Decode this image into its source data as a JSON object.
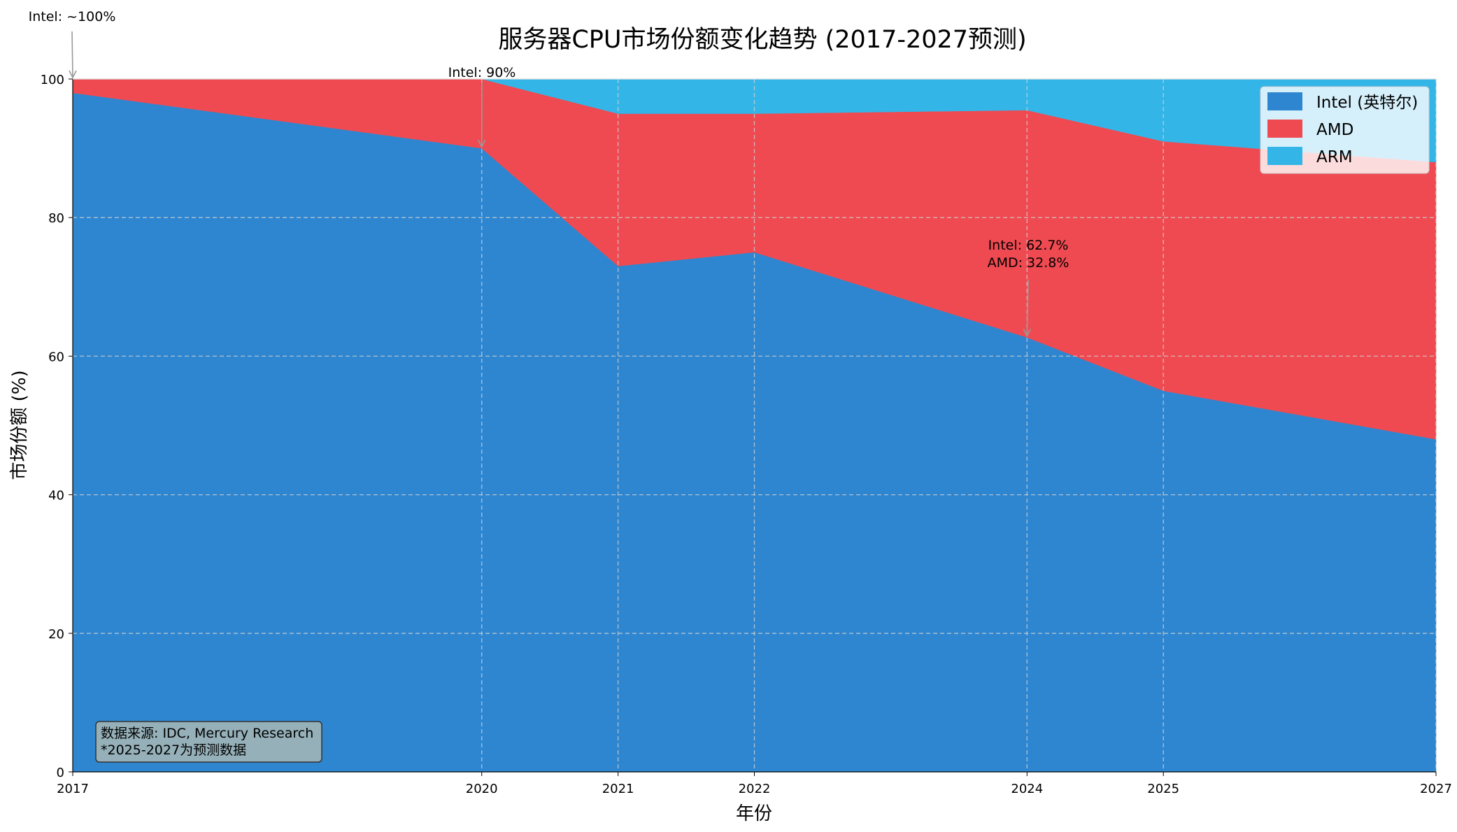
{
  "chart_data": {
    "type": "area",
    "stacked": true,
    "title": "服务器CPU市场份额变化趋势 (2017-2027预测)",
    "xlabel": "年份",
    "ylabel": "市场份额 (%)",
    "x": [
      2017,
      2020,
      2021,
      2022,
      2024,
      2025,
      2027
    ],
    "xticks": [
      "2017",
      "2020",
      "2021",
      "2022",
      "2024",
      "2025",
      "2027"
    ],
    "yticks": [
      "0",
      "20",
      "40",
      "60",
      "80",
      "100"
    ],
    "ylim": [
      0,
      100
    ],
    "xlim": [
      2017,
      2027
    ],
    "grid": true,
    "legend_position": "top-right",
    "series": [
      {
        "name": "Intel (英特尔)",
        "color": "#2e86d0",
        "values": [
          98,
          90,
          73,
          75,
          62.7,
          55,
          48
        ]
      },
      {
        "name": "AMD",
        "color": "#ef4a51",
        "values": [
          2,
          10,
          22,
          20,
          32.8,
          36,
          40
        ]
      },
      {
        "name": "ARM",
        "color": "#33b5e8",
        "values": [
          0,
          0,
          5,
          5,
          4.5,
          9,
          12
        ]
      }
    ],
    "annotations": [
      {
        "lines": [
          "Intel: ~100%"
        ],
        "x": 2017,
        "y": 100
      },
      {
        "lines": [
          "Intel: 90%"
        ],
        "x": 2020,
        "y": 90
      },
      {
        "lines": [
          "Intel: 62.7%",
          "AMD: 32.8%"
        ],
        "x": 2024,
        "y": 62.7
      }
    ],
    "source_note": [
      "数据来源: IDC, Mercury Research",
      "*2025-2027为预测数据"
    ]
  }
}
